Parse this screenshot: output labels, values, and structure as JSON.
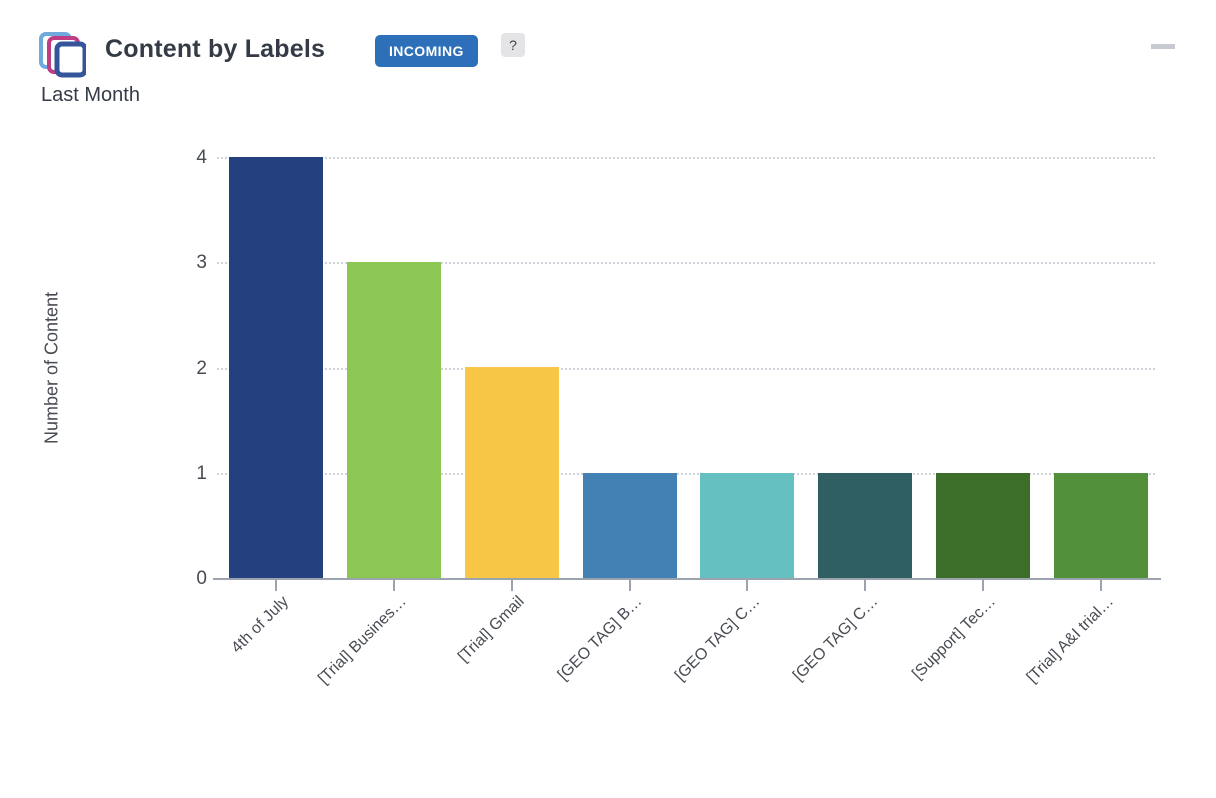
{
  "header": {
    "title": "Content by Labels",
    "badge": "INCOMING",
    "badge_color": "#2E6FBA",
    "help_label": "?",
    "subtitle": "Last Month",
    "icon_colors": {
      "back": "#6FA9DD",
      "middle": "#BE3D85",
      "front": "#34549B"
    }
  },
  "menu": {
    "icon": "hamburger-menu-icon",
    "color": "#C7CBD1"
  },
  "chart_data": {
    "type": "bar",
    "title": "Content by Labels",
    "subtitle": "Last Month",
    "categories": [
      "4th of July",
      "[Trial] Busines…",
      "[Trial] Gmail",
      "[GEO TAG] B…",
      "[GEO TAG] C…",
      "[GEO TAG] C…",
      "[Support] Tec…",
      "[Trial] A&I trial…"
    ],
    "values": [
      4,
      3,
      2,
      1,
      1,
      1,
      1,
      1
    ],
    "colors": [
      "#24407E",
      "#8CC653",
      "#F6C644",
      "#4380B4",
      "#65C0C1",
      "#2F5F63",
      "#3C6E29",
      "#52903A"
    ],
    "xlabel": "",
    "ylabel": "Number of Content",
    "yticks": [
      0,
      1,
      2,
      3,
      4
    ],
    "ylim": [
      0,
      4
    ],
    "grid": "horizontal-dotted",
    "legend": "none",
    "label_rotation": -45
  }
}
